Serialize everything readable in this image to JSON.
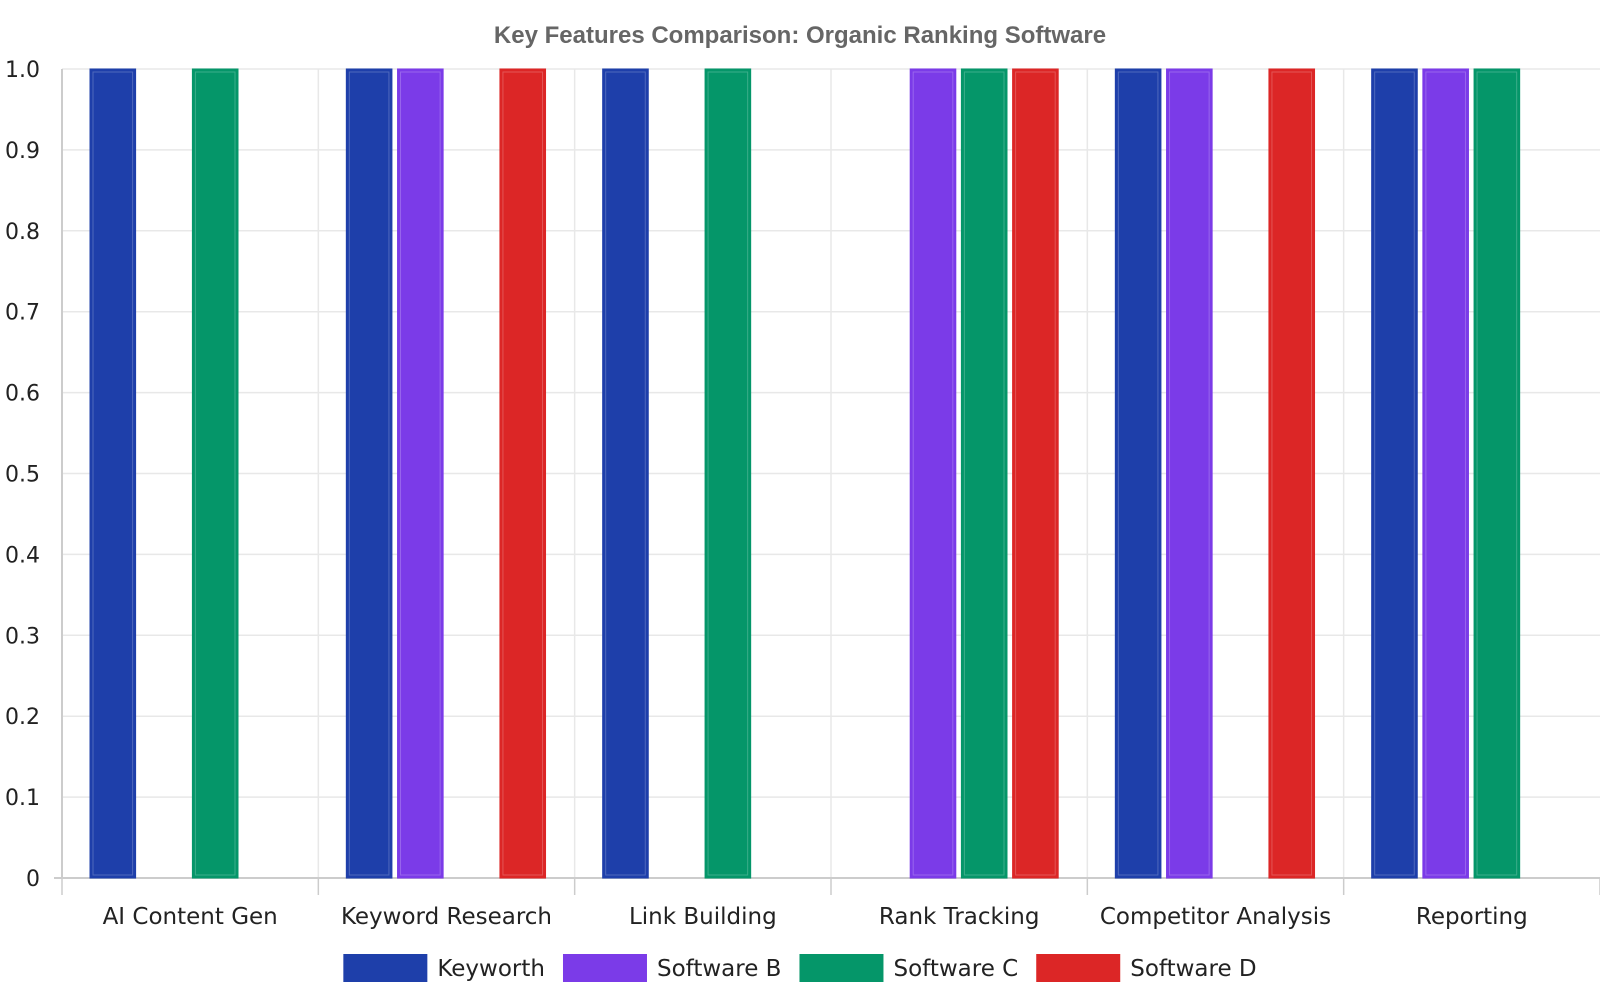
{
  "chart_data": {
    "type": "bar",
    "title": "Key Features Comparison: Organic Ranking Software",
    "xlabel": "",
    "ylabel": "",
    "ylim": [
      0,
      1
    ],
    "y_ticks": [
      "0",
      "0.1",
      "0.2",
      "0.3",
      "0.4",
      "0.5",
      "0.6",
      "0.7",
      "0.8",
      "0.9",
      "1.0"
    ],
    "grid": true,
    "legend_position": "bottom-center",
    "categories": [
      "AI Content Gen",
      "Keyword Research",
      "Link Building",
      "Rank Tracking",
      "Competitor Analysis",
      "Reporting"
    ],
    "series": [
      {
        "name": "Keyworth",
        "color": "#1e3faa",
        "values": [
          1,
          1,
          1,
          0,
          1,
          1
        ]
      },
      {
        "name": "Software B",
        "color": "#7b3be8",
        "values": [
          0,
          1,
          0,
          1,
          1,
          1
        ]
      },
      {
        "name": "Software C",
        "color": "#059669",
        "values": [
          1,
          0,
          1,
          1,
          0,
          1
        ]
      },
      {
        "name": "Software D",
        "color": "#dc2626",
        "values": [
          0,
          1,
          0,
          1,
          1,
          0
        ]
      }
    ]
  }
}
